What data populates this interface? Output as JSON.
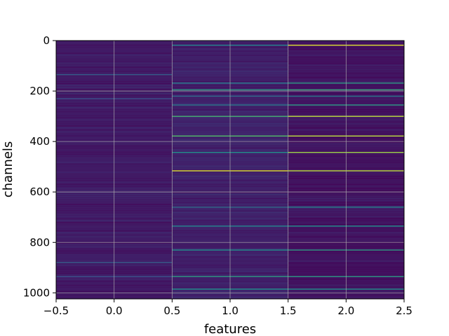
{
  "chart_data": {
    "type": "heatmap",
    "title": "",
    "xlabel": "features",
    "ylabel": "channels",
    "xlim": [
      -0.5,
      2.5
    ],
    "ylim": [
      1024,
      0
    ],
    "y_inverted": true,
    "x_ticks": [
      -0.5,
      0.0,
      0.5,
      1.0,
      1.5,
      2.0,
      2.5
    ],
    "x_tick_labels": [
      "−0.5",
      "0.0",
      "0.5",
      "1.0",
      "1.5",
      "2.0",
      "2.5"
    ],
    "y_ticks": [
      0,
      200,
      400,
      600,
      800,
      1000
    ],
    "y_tick_labels": [
      "0",
      "200",
      "400",
      "600",
      "800",
      "1000"
    ],
    "grid": true,
    "colormap": "viridis",
    "columns": [
      0,
      1,
      2
    ],
    "rows": 1024,
    "background_values": [
      0.08,
      0.1,
      0.06
    ],
    "highlights": [
      {
        "col": 0,
        "channel": 135,
        "value": 0.3
      },
      {
        "col": 0,
        "channel": 230,
        "value": 0.25
      },
      {
        "col": 0,
        "channel": 880,
        "value": 0.3
      },
      {
        "col": 0,
        "channel": 935,
        "value": 0.25
      },
      {
        "col": 1,
        "channel": 18,
        "value": 0.45
      },
      {
        "col": 1,
        "channel": 168,
        "value": 0.4
      },
      {
        "col": 1,
        "channel": 195,
        "value": 0.55
      },
      {
        "col": 1,
        "channel": 220,
        "value": 0.35
      },
      {
        "col": 1,
        "channel": 255,
        "value": 0.4
      },
      {
        "col": 1,
        "channel": 300,
        "value": 0.65
      },
      {
        "col": 1,
        "channel": 378,
        "value": 0.7
      },
      {
        "col": 1,
        "channel": 443,
        "value": 0.5
      },
      {
        "col": 1,
        "channel": 516,
        "value": 0.95
      },
      {
        "col": 1,
        "channel": 660,
        "value": 0.35
      },
      {
        "col": 1,
        "channel": 735,
        "value": 0.45
      },
      {
        "col": 1,
        "channel": 830,
        "value": 0.5
      },
      {
        "col": 1,
        "channel": 935,
        "value": 0.55
      },
      {
        "col": 1,
        "channel": 985,
        "value": 0.5
      },
      {
        "col": 2,
        "channel": 18,
        "value": 0.95
      },
      {
        "col": 2,
        "channel": 168,
        "value": 0.55
      },
      {
        "col": 2,
        "channel": 195,
        "value": 0.6
      },
      {
        "col": 2,
        "channel": 220,
        "value": 0.4
      },
      {
        "col": 2,
        "channel": 255,
        "value": 0.55
      },
      {
        "col": 2,
        "channel": 300,
        "value": 0.9
      },
      {
        "col": 2,
        "channel": 378,
        "value": 0.9
      },
      {
        "col": 2,
        "channel": 443,
        "value": 0.85
      },
      {
        "col": 2,
        "channel": 516,
        "value": 0.9
      },
      {
        "col": 2,
        "channel": 660,
        "value": 0.45
      },
      {
        "col": 2,
        "channel": 735,
        "value": 0.5
      },
      {
        "col": 2,
        "channel": 830,
        "value": 0.55
      },
      {
        "col": 2,
        "channel": 935,
        "value": 0.55
      },
      {
        "col": 2,
        "channel": 985,
        "value": 0.5
      }
    ]
  }
}
